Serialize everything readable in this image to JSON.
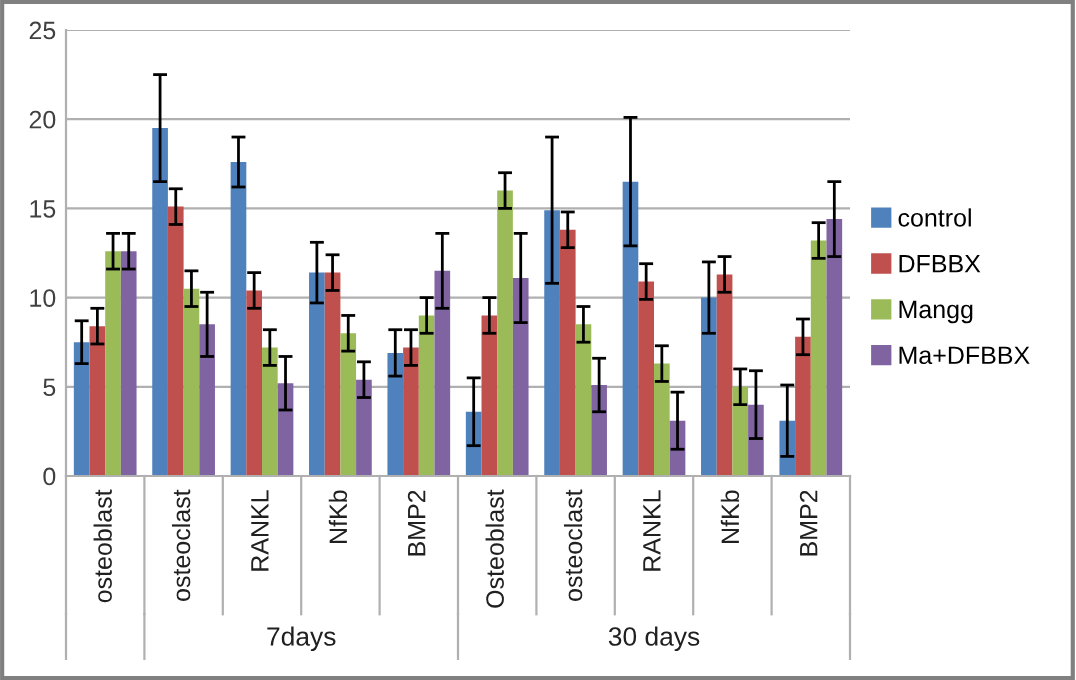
{
  "chart_data": {
    "type": "bar",
    "categories": [
      "osteoblast",
      "osteoclast",
      "RANKL",
      "NfKb",
      "BMP2",
      "Osteoblast",
      "osteoclast",
      "RANKL",
      "NfKb",
      "BMP2"
    ],
    "series": [
      {
        "name": "control",
        "color": "#4f81bd",
        "values": [
          7.5,
          19.5,
          17.6,
          11.4,
          6.9,
          3.6,
          14.9,
          16.5,
          10.0,
          3.1
        ],
        "errors": [
          1.2,
          3.0,
          1.4,
          1.7,
          1.3,
          1.9,
          4.1,
          3.6,
          2.0,
          2.0
        ]
      },
      {
        "name": "DFBBX",
        "color": "#c0504d",
        "values": [
          8.4,
          15.1,
          10.4,
          11.4,
          7.2,
          9.0,
          13.8,
          10.9,
          11.3,
          7.8
        ],
        "errors": [
          1.0,
          1.0,
          1.0,
          1.0,
          1.0,
          1.0,
          1.0,
          1.0,
          1.0,
          1.0
        ]
      },
      {
        "name": "Mangg",
        "color": "#9bbb59",
        "values": [
          12.6,
          10.5,
          7.2,
          8.0,
          9.0,
          16.0,
          8.5,
          6.3,
          5.0,
          13.2
        ],
        "errors": [
          1.0,
          1.0,
          1.0,
          1.0,
          1.0,
          1.0,
          1.0,
          1.0,
          1.0,
          1.0
        ]
      },
      {
        "name": "Ma+DFBBX",
        "color": "#8064a2",
        "values": [
          12.6,
          8.5,
          5.2,
          5.4,
          11.5,
          11.1,
          5.1,
          3.1,
          4.0,
          14.4
        ],
        "errors": [
          1.0,
          1.8,
          1.5,
          1.0,
          2.1,
          2.5,
          1.5,
          1.6,
          1.9,
          2.1
        ]
      }
    ],
    "ylim": [
      0,
      25
    ],
    "yticks": [
      0,
      5,
      10,
      15,
      20,
      25
    ],
    "grid": "y",
    "legend": "right",
    "annotations": [
      "7days",
      "30 days"
    ]
  }
}
